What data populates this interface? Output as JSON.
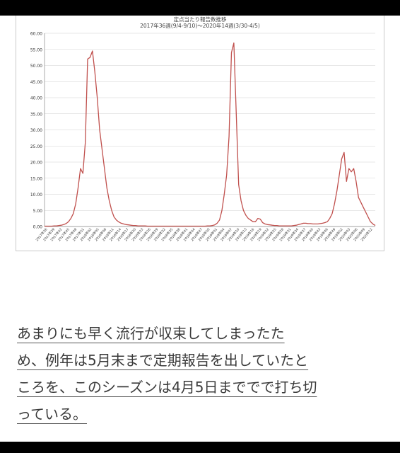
{
  "chart": {
    "title": "定点当たり報告数推移",
    "subtitle": "2017年36週(9/4-9/10)〜2020年14週(3/30-4/5)"
  },
  "chart_data": {
    "type": "line",
    "ylim": [
      0,
      60
    ],
    "yticks": [
      "60.00",
      "55.00",
      "50.00",
      "45.00",
      "40.00",
      "35.00",
      "30.00",
      "25.00",
      "20.00",
      "15.00",
      "10.00",
      "5.00",
      "0.00"
    ],
    "xticks": [
      "2017年36",
      "2017年39",
      "2017年42",
      "2017年45",
      "2017年48",
      "2017年51",
      "2018年02",
      "2018年05",
      "2018年08",
      "2018年11",
      "2018年14",
      "2018年17",
      "2018年20",
      "2018年23",
      "2018年26",
      "2018年29",
      "2018年32",
      "2018年35",
      "2018年38",
      "2018年41",
      "2018年44",
      "2018年47",
      "2018年50",
      "2019年01",
      "2019年04",
      "2019年07",
      "2019年10",
      "2019年13",
      "2019年16",
      "2019年19",
      "2019年22",
      "2019年25",
      "2019年28",
      "2019年31",
      "2019年34",
      "2019年37",
      "2019年40",
      "2019年43",
      "2019年46",
      "2019年49",
      "2019年52",
      "2020年03",
      "2020年06",
      "2020年09",
      "2020年12"
    ],
    "grid": true,
    "series": [
      {
        "color": "#c0504d",
        "values": [
          0.1,
          0.1,
          0.1,
          0.1,
          0.2,
          0.2,
          0.3,
          0.4,
          0.6,
          0.9,
          1.5,
          2.5,
          4.0,
          7.0,
          12.0,
          18.0,
          16.5,
          26.0,
          52.0,
          52.5,
          54.5,
          48.0,
          40.0,
          30.0,
          24.0,
          18.0,
          12.0,
          8.0,
          5.0,
          3.0,
          2.0,
          1.4,
          1.0,
          0.8,
          0.6,
          0.5,
          0.4,
          0.3,
          0.3,
          0.2,
          0.2,
          0.2,
          0.2,
          0.1,
          0.1,
          0.1,
          0.1,
          0.1,
          0.1,
          0.1,
          0.1,
          0.1,
          0.1,
          0.1,
          0.1,
          0.1,
          0.1,
          0.1,
          0.1,
          0.1,
          0.1,
          0.1,
          0.1,
          0.1,
          0.1,
          0.1,
          0.1,
          0.1,
          0.2,
          0.2,
          0.3,
          0.5,
          1.0,
          2.0,
          5.0,
          10.0,
          16.0,
          28.0,
          54.0,
          57.0,
          35.0,
          13.0,
          8.0,
          5.0,
          3.5,
          2.5,
          2.0,
          1.5,
          1.5,
          2.5,
          2.3,
          1.2,
          0.8,
          0.6,
          0.5,
          0.4,
          0.3,
          0.3,
          0.2,
          0.2,
          0.2,
          0.2,
          0.2,
          0.2,
          0.3,
          0.4,
          0.6,
          0.8,
          1.0,
          1.0,
          0.9,
          0.9,
          0.8,
          0.8,
          0.8,
          0.9,
          1.0,
          1.2,
          1.5,
          2.5,
          4.0,
          7.0,
          11.0,
          16.0,
          21.0,
          23.0,
          14.0,
          18.0,
          17.0,
          18.0,
          14.0,
          9.0,
          7.5,
          6.0,
          4.5,
          3.0,
          1.5,
          0.8,
          0.3
        ]
      }
    ]
  },
  "article": {
    "lines": [
      "あまりにも早く流行が収束してしまったた",
      "め、例年は5月末まで定期報告を出していたと",
      "ころを、このシーズンは4月5日まででで打ち切",
      "っている。"
    ]
  }
}
